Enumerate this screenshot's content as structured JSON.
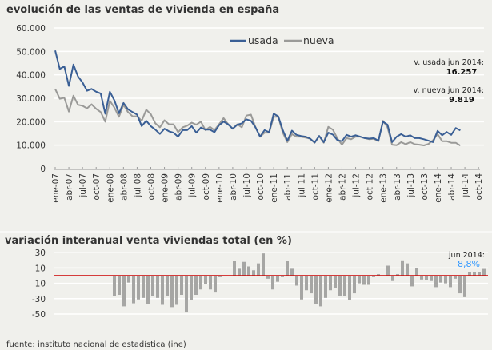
{
  "colors": {
    "usada": "#3a5f95",
    "nueva": "#9a9a98",
    "bars": "#a6a6a4",
    "zero_line": "#cc0000",
    "highlight": "#3399ff",
    "grid": "#ffffff",
    "background": "#f0f0ec"
  },
  "footer": "fuente: instituto nacional de estadística (ine)",
  "chart_data": [
    {
      "type": "line",
      "title": "evolución de las ventas de vivienda en españa",
      "ylim": [
        0,
        60000
      ],
      "yticks": [
        "0",
        "10.000",
        "20.000",
        "30.000",
        "40.000",
        "50.000",
        "60.000"
      ],
      "ytick_values": [
        0,
        10000,
        20000,
        30000,
        40000,
        50000,
        60000
      ],
      "xtick_labels": [
        "ene-07",
        "abr-07",
        "jul-07",
        "oct-07",
        "ene-08",
        "abr-08",
        "jul-08",
        "oct-08",
        "ene-09",
        "abr-09",
        "jul-09",
        "oct-09",
        "ene-10",
        "abr-10",
        "jul-10",
        "oct-10",
        "ene-11",
        "abr-11",
        "jul-11",
        "oct-11",
        "ene-12",
        "abr-12",
        "jul-12",
        "oct-12",
        "ene-13",
        "abr-13",
        "jul-13",
        "oct-13",
        "ene-14",
        "abr-14",
        "jul-14",
        "oct-14"
      ],
      "x_range": [
        "ene-07",
        "oct-14"
      ],
      "x_start": "ene-07",
      "x_frequency": "monthly",
      "grid": true,
      "legend": "top-center",
      "series": [
        {
          "name": "usada",
          "values": [
            50400,
            42500,
            43600,
            35300,
            44400,
            39300,
            36800,
            33200,
            34000,
            32800,
            32000,
            23400,
            32800,
            29100,
            23600,
            28000,
            25300,
            24100,
            23000,
            18100,
            20400,
            18100,
            16600,
            14800,
            17000,
            15900,
            15300,
            13600,
            16400,
            16400,
            18100,
            15300,
            17500,
            16600,
            16600,
            15500,
            18500,
            20000,
            18900,
            17000,
            18700,
            19300,
            21000,
            20400,
            17600,
            13600,
            16400,
            15500,
            23400,
            22300,
            16400,
            11900,
            16200,
            14400,
            13900,
            13600,
            12800,
            11100,
            13900,
            11300,
            15300,
            14500,
            12100,
            11700,
            14400,
            13600,
            14200,
            13600,
            13000,
            12800,
            13000,
            11900,
            20000,
            18700,
            11300,
            13600,
            14700,
            13600,
            14200,
            13000,
            13000,
            12500,
            11900,
            11300,
            16100,
            14200,
            15600,
            14400,
            17300,
            16257
          ]
        },
        {
          "name": "nueva",
          "values": [
            34000,
            29800,
            30200,
            24300,
            31100,
            27200,
            26800,
            25700,
            27400,
            25500,
            24100,
            20000,
            28900,
            26000,
            22100,
            27200,
            24100,
            22300,
            22300,
            20400,
            25100,
            23200,
            19300,
            17600,
            20600,
            18900,
            18900,
            15500,
            17600,
            18300,
            19600,
            18700,
            20000,
            16400,
            17800,
            16400,
            18900,
            21500,
            18900,
            17000,
            18900,
            17600,
            22600,
            23000,
            17600,
            13600,
            15300,
            15300,
            22100,
            22100,
            15300,
            11300,
            14700,
            13600,
            13600,
            13200,
            12800,
            11000,
            13900,
            11000,
            17800,
            16600,
            12800,
            10200,
            13000,
            12500,
            13600,
            13600,
            13000,
            12500,
            12700,
            11700,
            20400,
            17600,
            10200,
            10000,
            11300,
            10400,
            11300,
            10400,
            10200,
            9900,
            10500,
            12100,
            14700,
            11700,
            11700,
            11000,
            11000,
            9819
          ]
        }
      ],
      "annotations": [
        {
          "label": "v. usada jun 2014:",
          "value": "16.257"
        },
        {
          "label": "v. nueva jun 2014:",
          "value": "9.819"
        }
      ]
    },
    {
      "type": "bar",
      "title": "variación interanual  venta viviendas total (en %)",
      "ylim": [
        -60,
        35
      ],
      "yticks": [
        "30",
        "10",
        "-10",
        "-30",
        "-50"
      ],
      "ytick_values": [
        30,
        10,
        -10,
        -30,
        -50
      ],
      "grid": true,
      "values": [
        -27,
        -25,
        -40,
        -9,
        -36,
        -31,
        -29,
        -37,
        -27,
        -29,
        -38,
        -26,
        -41,
        -38,
        -25,
        -48,
        -32,
        -25,
        -18,
        -11,
        -18,
        -22,
        -2,
        -1,
        0,
        19,
        9,
        18,
        12,
        7,
        16,
        29,
        -4,
        -18,
        -8,
        -2,
        19,
        9,
        -13,
        -31,
        -19,
        -23,
        -37,
        -40,
        -29,
        -19,
        -16,
        -26,
        -27,
        -32,
        -23,
        -10,
        -12,
        -12,
        -2,
        2,
        0,
        13,
        -7,
        2,
        20,
        16,
        -14,
        10,
        -5,
        -6,
        -7,
        -15,
        -9,
        -10,
        -15,
        -4,
        -23,
        -28,
        5,
        5,
        5,
        8.8
      ],
      "annotation": {
        "label": "jun 2014:",
        "value": "8,8%"
      }
    }
  ]
}
